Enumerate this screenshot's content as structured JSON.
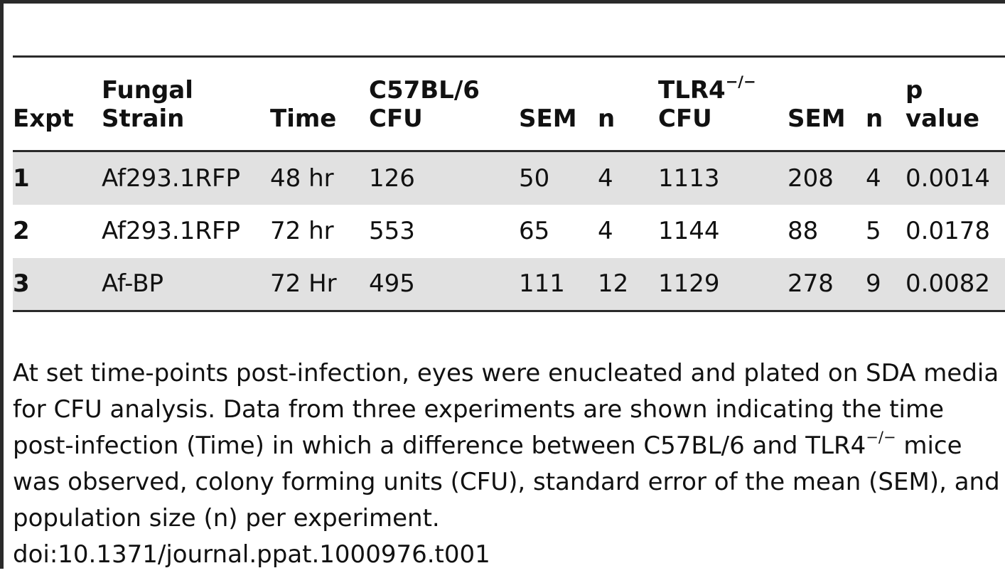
{
  "table": {
    "headers": {
      "expt": "Expt",
      "strain_line1": "Fungal",
      "strain_line2": "Strain",
      "time": "Time",
      "b6_line1": "C57BL/6",
      "b6_line2": "CFU",
      "sem1": "SEM",
      "n1": "n",
      "tlr_line1": "TLR4",
      "tlr_sup": "−/−",
      "tlr_line2": "CFU",
      "sem2": "SEM",
      "n2": "n",
      "p_line1": "p",
      "p_line2": "value"
    },
    "rows": [
      {
        "expt": "1",
        "strain": "Af293.1RFP",
        "time": "48 hr",
        "b6_cfu": "126",
        "b6_sem": "50",
        "b6_n": "4",
        "tlr_cfu": "1113",
        "tlr_sem": "208",
        "tlr_n": "4",
        "p": "0.0014"
      },
      {
        "expt": "2",
        "strain": "Af293.1RFP",
        "time": "72 hr",
        "b6_cfu": "553",
        "b6_sem": "65",
        "b6_n": "4",
        "tlr_cfu": "1144",
        "tlr_sem": "88",
        "tlr_n": "5",
        "p": "0.0178"
      },
      {
        "expt": "3",
        "strain": "Af-BP",
        "time": "72 Hr",
        "b6_cfu": "495",
        "b6_sem": "111",
        "b6_n": "12",
        "tlr_cfu": "1129",
        "tlr_sem": "278",
        "tlr_n": "9",
        "p": "0.0082"
      }
    ]
  },
  "caption": {
    "part1": "At set time-points post-infection, eyes were enucleated and plated on SDA media for CFU analysis. Data from three experiments are shown indicating the time post-infection (Time) in which a difference between C57BL/6 and TLR4",
    "sup": "−/−",
    "part2": " mice was observed, colony forming units (CFU), standard error of the mean (SEM), and population size (n) per experiment.",
    "doi": "doi:10.1371/journal.ppat.1000976.t001"
  },
  "colors": {
    "rule": "#2a2a2a",
    "row_shade": "#e1e1e1"
  }
}
